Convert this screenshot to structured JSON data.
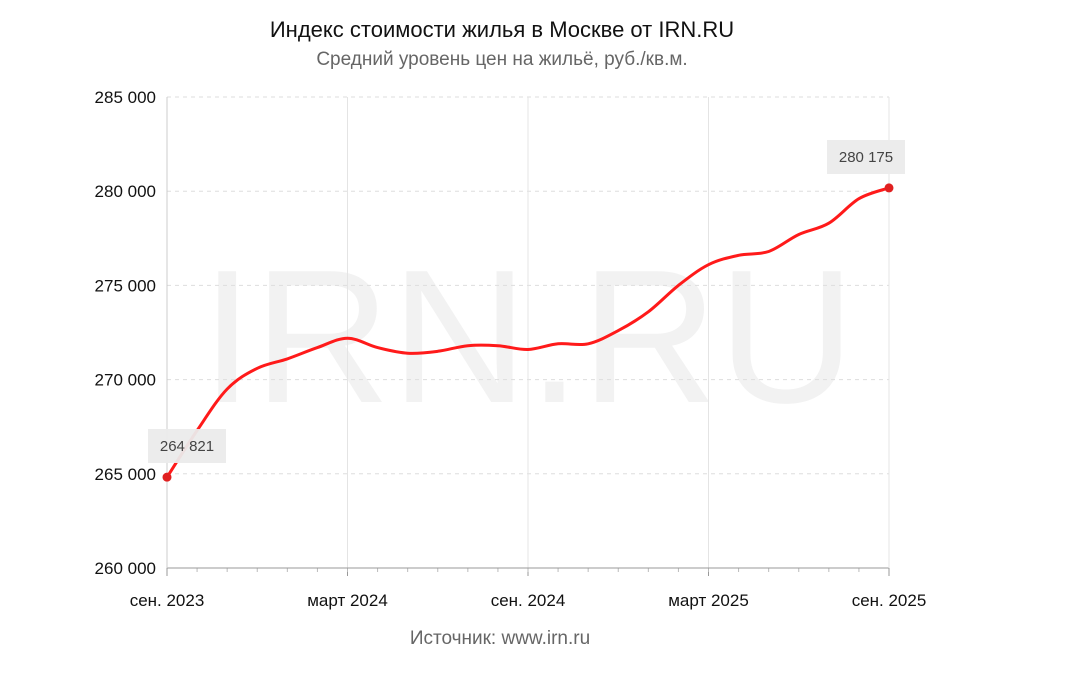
{
  "chart_data": {
    "type": "line",
    "title": "Индекс стоимости жилья в Москве от IRN.RU",
    "subtitle": "Средний уровень цен на жильё, руб./кв.м.",
    "source": "Источник: www.irn.ru",
    "watermark": "IRN.RU",
    "ylim": [
      260000,
      285000
    ],
    "yticks": [
      260000,
      265000,
      270000,
      275000,
      280000,
      285000
    ],
    "ytick_labels": [
      "260 000",
      "265 000",
      "270 000",
      "275 000",
      "280 000",
      "285 000"
    ],
    "xlim": [
      "2023-09",
      "2025-09"
    ],
    "xticks": [
      "2023-09",
      "2024-03",
      "2024-09",
      "2025-03",
      "2025-09"
    ],
    "xtick_labels": [
      "сен. 2023",
      "март 2024",
      "сен. 2024",
      "март 2025",
      "сен. 2025"
    ],
    "grid": true,
    "series": [
      {
        "color": "#ff1a1a",
        "x": [
          "2023-09",
          "2023-10",
          "2023-11",
          "2023-12",
          "2024-01",
          "2024-02",
          "2024-03",
          "2024-04",
          "2024-05",
          "2024-06",
          "2024-07",
          "2024-08",
          "2024-09",
          "2024-10",
          "2024-11",
          "2024-12",
          "2025-01",
          "2025-02",
          "2025-03",
          "2025-04",
          "2025-05",
          "2025-06",
          "2025-07",
          "2025-08",
          "2025-09"
        ],
        "values": [
          264821,
          267300,
          269500,
          270600,
          271100,
          271700,
          272200,
          271700,
          271400,
          271500,
          271800,
          271800,
          271600,
          271900,
          271900,
          272600,
          273600,
          275000,
          276100,
          276600,
          276800,
          277700,
          278300,
          279600,
          280175
        ]
      }
    ],
    "annotations": [
      {
        "x": "2023-09",
        "value": 264821,
        "label": "264 821"
      },
      {
        "x": "2025-09",
        "value": 280175,
        "label": "280 175"
      }
    ]
  }
}
